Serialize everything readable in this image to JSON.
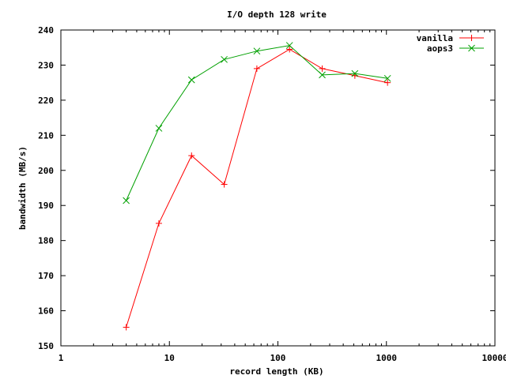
{
  "chart_data": {
    "type": "line",
    "title": "I/O depth 128 write",
    "xlabel": "record length (KB)",
    "ylabel": "bandwidth (MB/s)",
    "x_scale": "log",
    "xlim": [
      1,
      10000
    ],
    "ylim": [
      150,
      240
    ],
    "x_ticks": [
      {
        "value": 1,
        "label": "1"
      },
      {
        "value": 10,
        "label": "10"
      },
      {
        "value": 100,
        "label": "100"
      },
      {
        "value": 1000,
        "label": "1000"
      },
      {
        "value": 10000,
        "label": "10000"
      }
    ],
    "y_ticks": [
      150,
      160,
      170,
      180,
      190,
      200,
      210,
      220,
      230,
      240
    ],
    "grid": false,
    "legend_position": "top-right",
    "x": [
      4,
      8,
      16,
      32,
      64,
      128,
      256,
      512,
      1024
    ],
    "series": [
      {
        "name": "vanilla",
        "color": "#ff0000",
        "marker": "plus",
        "values": [
          155.3,
          184.9,
          204.2,
          196.0,
          229.0,
          234.5,
          229.0,
          227.0,
          225.0
        ]
      },
      {
        "name": "aops3",
        "color": "#00a000",
        "marker": "cross",
        "values": [
          191.4,
          212.0,
          225.8,
          231.6,
          234.0,
          235.6,
          227.2,
          227.6,
          226.2
        ]
      }
    ]
  }
}
